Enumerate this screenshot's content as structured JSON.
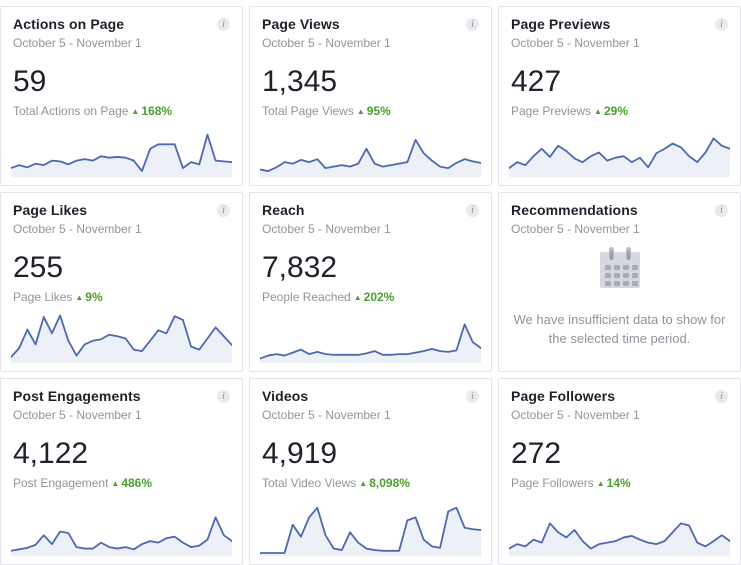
{
  "icons": {
    "info": "i",
    "arrow_up": "▲"
  },
  "colors": {
    "spark_line": "#4c69b0",
    "spark_fill": "#eef0f8",
    "delta_green": "#4a9e30",
    "title_text": "#1d2129",
    "muted_text": "#90949c",
    "card_border": "#e3e4e8"
  },
  "cards": [
    {
      "title": "Actions on Page",
      "date_range": "October 5 - November 1",
      "value": "59",
      "label": "Total Actions on Page",
      "delta": "168%",
      "spark": [
        12,
        16,
        13,
        18,
        16,
        22,
        21,
        17,
        22,
        24,
        22,
        28,
        26,
        27,
        26,
        22,
        8,
        38,
        44,
        44,
        44,
        12,
        20,
        17,
        57,
        22,
        21,
        20
      ]
    },
    {
      "title": "Page Views",
      "date_range": "October 5 - November 1",
      "value": "1,345",
      "label": "Total Page Views",
      "delta": "95%",
      "spark": [
        10,
        8,
        13,
        20,
        18,
        23,
        20,
        24,
        12,
        14,
        16,
        14,
        18,
        38,
        18,
        14,
        16,
        18,
        20,
        50,
        32,
        22,
        14,
        12,
        19,
        24,
        21,
        19
      ]
    },
    {
      "title": "Page Previews",
      "date_range": "October 5 - November 1",
      "value": "427",
      "label": "Page Previews",
      "delta": "29%",
      "spark": [
        12,
        20,
        16,
        28,
        38,
        27,
        42,
        35,
        25,
        20,
        28,
        33,
        22,
        26,
        28,
        20,
        26,
        13,
        32,
        38,
        45,
        40,
        28,
        20,
        33,
        52,
        42,
        38
      ]
    },
    {
      "title": "Page Likes",
      "date_range": "October 5 - November 1",
      "value": "255",
      "label": "Page Likes",
      "delta": "9%",
      "spark": [
        8,
        20,
        45,
        25,
        62,
        40,
        64,
        30,
        10,
        25,
        30,
        32,
        38,
        36,
        33,
        18,
        16,
        30,
        44,
        40,
        63,
        58,
        22,
        18,
        33,
        48,
        36,
        24
      ]
    },
    {
      "title": "Reach",
      "date_range": "October 5 - November 1",
      "value": "7,832",
      "label": "People Reached",
      "delta": "202%",
      "spark": [
        6,
        10,
        12,
        10,
        14,
        18,
        12,
        15,
        12,
        11,
        11,
        11,
        11,
        13,
        16,
        11,
        11,
        12,
        12,
        14,
        16,
        19,
        16,
        15,
        17,
        52,
        28,
        20
      ]
    },
    {
      "title": "Recommendations",
      "date_range": "October 5 - November 1",
      "empty_message": "We have insufficient data to show for the selected time period."
    },
    {
      "title": "Post Engagements",
      "date_range": "October 5 - November 1",
      "value": "4,122",
      "label": "Post Engagement",
      "delta": "486%",
      "spark": [
        7,
        9,
        11,
        15,
        28,
        16,
        33,
        31,
        12,
        10,
        10,
        18,
        12,
        10,
        12,
        9,
        16,
        20,
        18,
        24,
        26,
        18,
        12,
        14,
        22,
        52,
        28,
        20
      ]
    },
    {
      "title": "Videos",
      "date_range": "October 5 - November 1",
      "value": "4,919",
      "label": "Total Video Views",
      "delta": "8,098%",
      "spark": [
        4,
        4,
        4,
        4,
        42,
        26,
        52,
        65,
        28,
        10,
        8,
        32,
        18,
        10,
        8,
        7,
        7,
        7,
        48,
        52,
        22,
        13,
        11,
        60,
        65,
        38,
        36,
        35
      ]
    },
    {
      "title": "Page Followers",
      "date_range": "October 5 - November 1",
      "value": "272",
      "label": "Page Followers",
      "delta": "14%",
      "spark": [
        10,
        16,
        13,
        22,
        18,
        44,
        32,
        25,
        35,
        20,
        10,
        16,
        18,
        20,
        25,
        27,
        22,
        18,
        16,
        20,
        32,
        44,
        41,
        18,
        13,
        20,
        28,
        20
      ]
    }
  ]
}
